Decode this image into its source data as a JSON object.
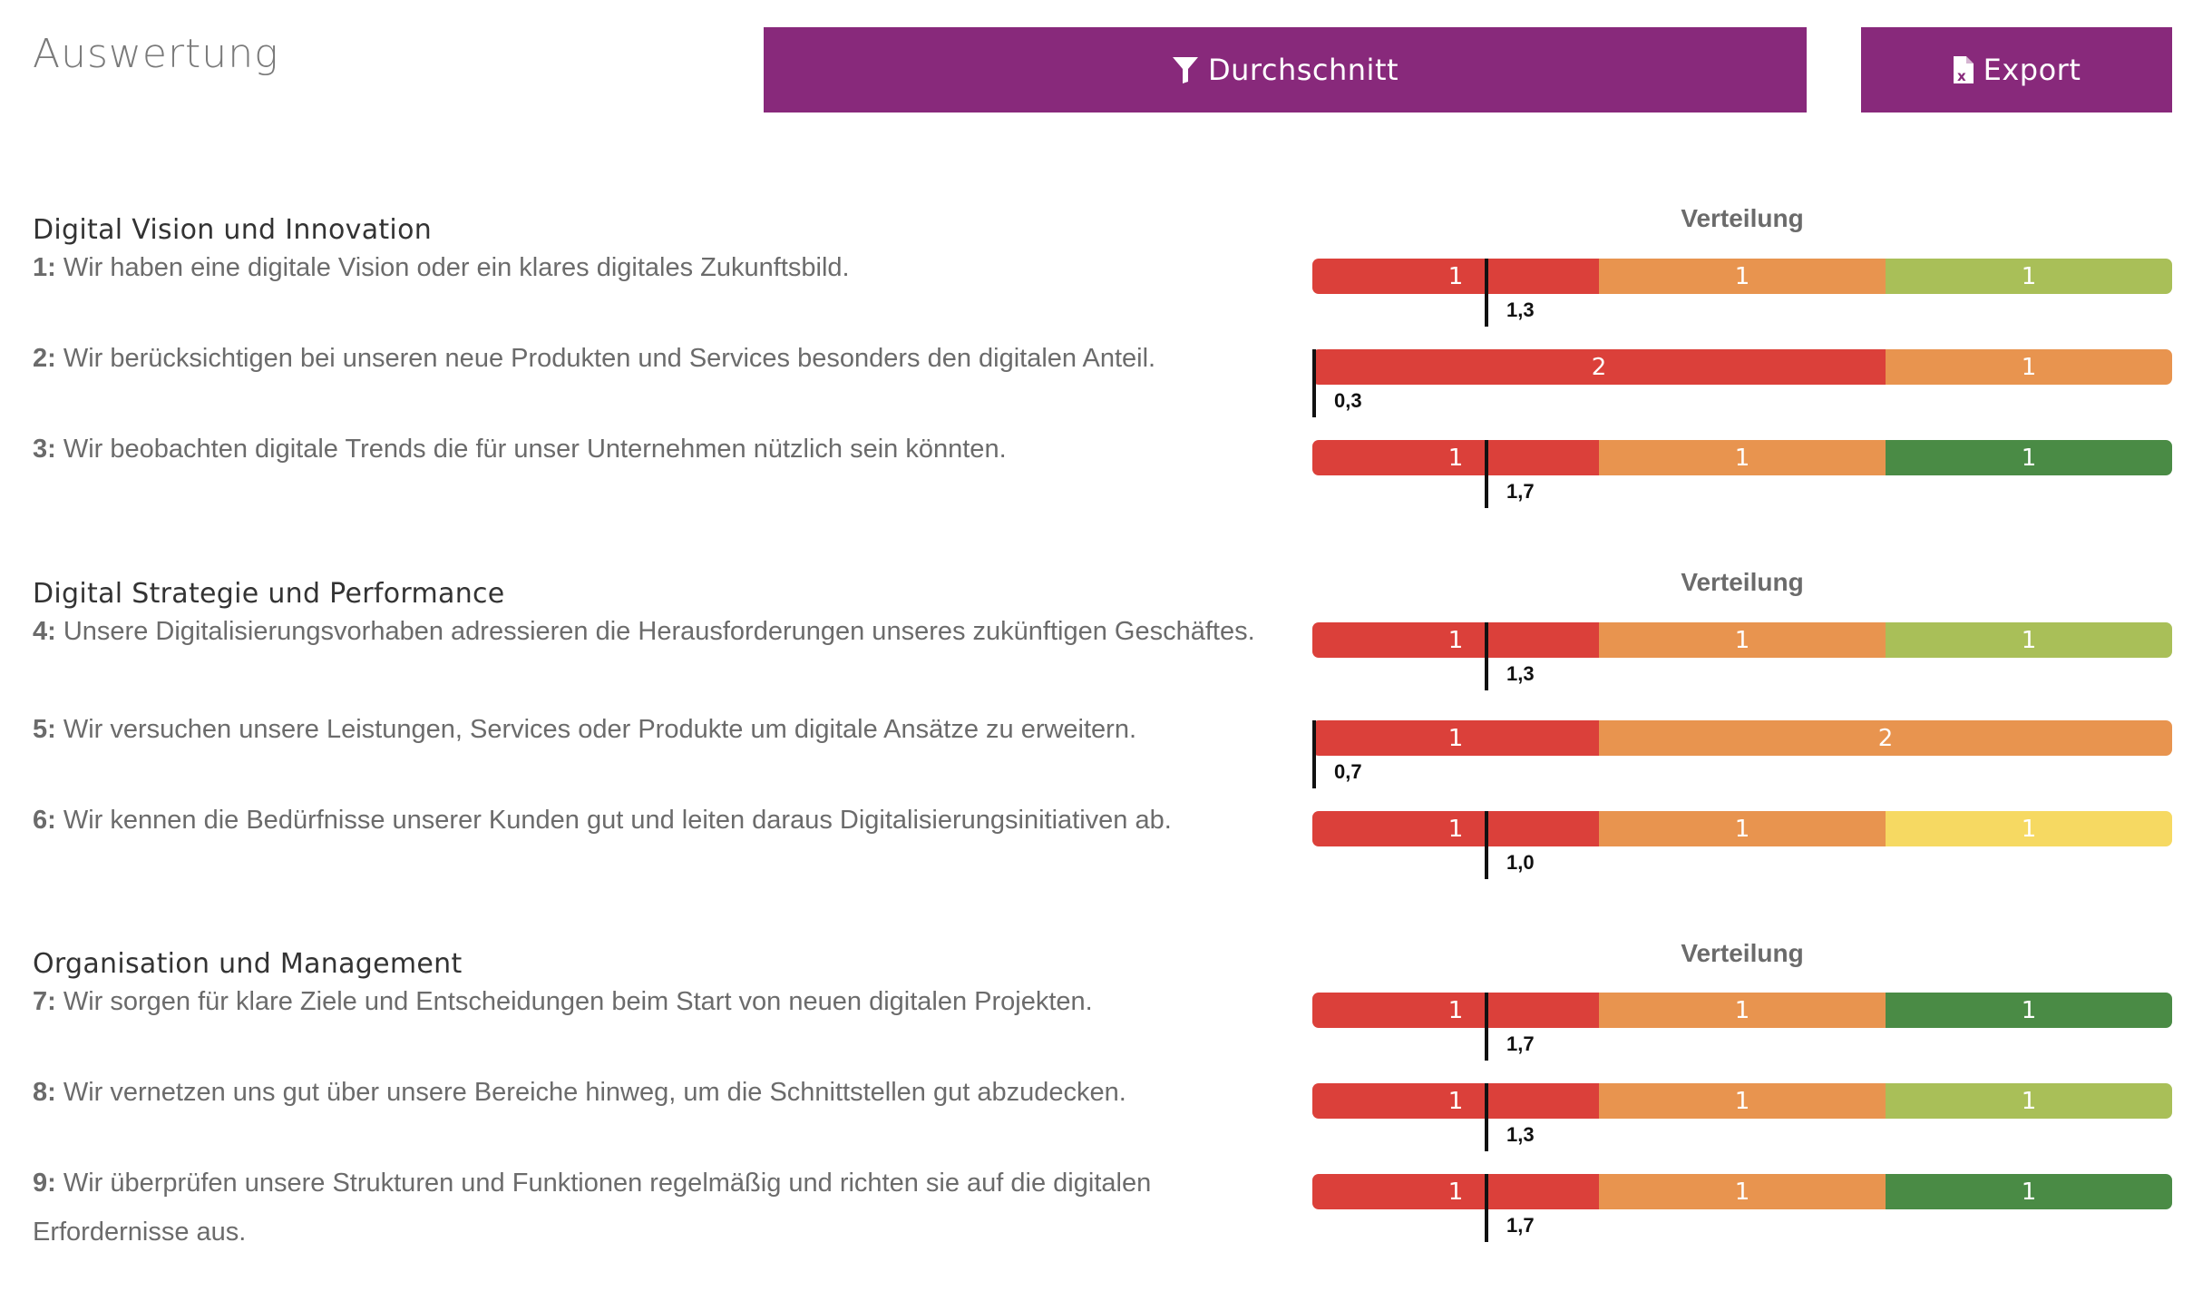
{
  "header": {
    "title": "Auswertung",
    "average_button": {
      "label": "Durchschnitt",
      "icon": "filter-icon"
    },
    "export_button": {
      "label": "Export",
      "icon": "excel-file-icon"
    }
  },
  "colors": {
    "button": "#88297b",
    "red": "#db403a",
    "orange": "#e8944f",
    "light_green": "#a9bf58",
    "dark_green": "#4a8b45",
    "yellow": "#f6d962"
  },
  "sections": [
    {
      "heading": "Digital Vision und Innovation",
      "distribution_label": "Verteilung",
      "questions": [
        {
          "number": "1:",
          "text": "Wir haben eine digitale Vision oder ein klares digitales Zukunftsbild.",
          "segments": [
            {
              "count": 1,
              "color": "red"
            },
            {
              "count": 1,
              "color": "orange"
            },
            {
              "count": 1,
              "color": "light_green"
            }
          ],
          "average": 1.3,
          "average_label": "1,3"
        },
        {
          "number": "2:",
          "text": "Wir berücksichtigen bei unseren neue Produkten und Services besonders den digitalen Anteil.",
          "segments": [
            {
              "count": 2,
              "color": "red"
            },
            {
              "count": 1,
              "color": "orange"
            }
          ],
          "average": 0.3,
          "average_label": "0,3"
        },
        {
          "number": "3:",
          "text": "Wir beobachten digitale Trends die für unser Unternehmen nützlich sein könnten.",
          "segments": [
            {
              "count": 1,
              "color": "red"
            },
            {
              "count": 1,
              "color": "orange"
            },
            {
              "count": 1,
              "color": "dark_green"
            }
          ],
          "average": 1.7,
          "average_label": "1,7"
        }
      ]
    },
    {
      "heading": "Digital Strategie und Performance",
      "distribution_label": "Verteilung",
      "questions": [
        {
          "number": "4:",
          "text": "Unsere Digitalisierungsvorhaben adressieren die Herausforderungen unseres zukünftigen Geschäftes.",
          "segments": [
            {
              "count": 1,
              "color": "red"
            },
            {
              "count": 1,
              "color": "orange"
            },
            {
              "count": 1,
              "color": "light_green"
            }
          ],
          "average": 1.3,
          "average_label": "1,3"
        },
        {
          "number": "5:",
          "text": "Wir versuchen unsere Leistungen, Services oder Produkte um digitale Ansätze zu erweitern.",
          "segments": [
            {
              "count": 1,
              "color": "red"
            },
            {
              "count": 2,
              "color": "orange"
            }
          ],
          "average": 0.7,
          "average_label": "0,7"
        },
        {
          "number": "6:",
          "text": "Wir kennen die Bedürfnisse unserer Kunden gut und leiten daraus Digitalisierungsinitiativen ab.",
          "segments": [
            {
              "count": 1,
              "color": "red"
            },
            {
              "count": 1,
              "color": "orange"
            },
            {
              "count": 1,
              "color": "yellow"
            }
          ],
          "average": 1.0,
          "average_label": "1,0"
        }
      ]
    },
    {
      "heading": "Organisation und Management",
      "distribution_label": "Verteilung",
      "questions": [
        {
          "number": "7:",
          "text": "Wir sorgen für klare Ziele und Entscheidungen beim Start von neuen digitalen Projekten.",
          "segments": [
            {
              "count": 1,
              "color": "red"
            },
            {
              "count": 1,
              "color": "orange"
            },
            {
              "count": 1,
              "color": "dark_green"
            }
          ],
          "average": 1.7,
          "average_label": "1,7"
        },
        {
          "number": "8:",
          "text": "Wir vernetzen uns gut über unsere Bereiche hinweg, um die Schnittstellen gut abzudecken.",
          "segments": [
            {
              "count": 1,
              "color": "red"
            },
            {
              "count": 1,
              "color": "orange"
            },
            {
              "count": 1,
              "color": "light_green"
            }
          ],
          "average": 1.3,
          "average_label": "1,3"
        },
        {
          "number": "9:",
          "text": "Wir überprüfen unsere Strukturen und Funktionen regelmäßig und richten sie auf die digitalen Erfordernisse aus.",
          "segments": [
            {
              "count": 1,
              "color": "red"
            },
            {
              "count": 1,
              "color": "orange"
            },
            {
              "count": 1,
              "color": "dark_green"
            }
          ],
          "average": 1.7,
          "average_label": "1,7"
        }
      ]
    }
  ]
}
